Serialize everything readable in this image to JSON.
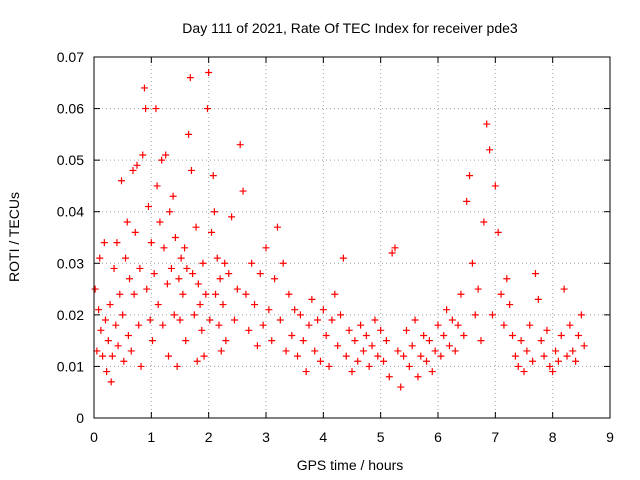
{
  "chart_data": {
    "type": "scatter",
    "title": "Day 111 of 2021, Rate Of TEC Index for receiver pde3",
    "xlabel": "GPS time / hours",
    "ylabel": "ROTI / TECUs",
    "xlim": [
      0,
      9
    ],
    "ylim": [
      0,
      0.07
    ],
    "xticks": [
      "0",
      "1",
      "2",
      "3",
      "4",
      "5",
      "6",
      "7",
      "8",
      "9"
    ],
    "yticks": [
      "0",
      "0.01",
      "0.02",
      "0.03",
      "0.04",
      "0.05",
      "0.06",
      "0.07"
    ],
    "grid": true,
    "marker": "plus",
    "color": "#ff0000",
    "series": [
      {
        "points": [
          [
            0.02,
            0.025
          ],
          [
            0.05,
            0.013
          ],
          [
            0.08,
            0.021
          ],
          [
            0.1,
            0.031
          ],
          [
            0.12,
            0.017
          ],
          [
            0.15,
            0.012
          ],
          [
            0.18,
            0.034
          ],
          [
            0.2,
            0.019
          ],
          [
            0.22,
            0.009
          ],
          [
            0.25,
            0.015
          ],
          [
            0.28,
            0.022
          ],
          [
            0.3,
            0.007
          ],
          [
            0.32,
            0.012
          ],
          [
            0.35,
            0.029
          ],
          [
            0.38,
            0.018
          ],
          [
            0.4,
            0.034
          ],
          [
            0.42,
            0.014
          ],
          [
            0.45,
            0.024
          ],
          [
            0.48,
            0.046
          ],
          [
            0.5,
            0.02
          ],
          [
            0.52,
            0.011
          ],
          [
            0.55,
            0.031
          ],
          [
            0.58,
            0.038
          ],
          [
            0.6,
            0.016
          ],
          [
            0.62,
            0.027
          ],
          [
            0.65,
            0.013
          ],
          [
            0.68,
            0.048
          ],
          [
            0.7,
            0.024
          ],
          [
            0.72,
            0.036
          ],
          [
            0.75,
            0.049
          ],
          [
            0.78,
            0.018
          ],
          [
            0.8,
            0.029
          ],
          [
            0.82,
            0.01
          ],
          [
            0.85,
            0.051
          ],
          [
            0.88,
            0.064
          ],
          [
            0.9,
            0.06
          ],
          [
            0.92,
            0.025
          ],
          [
            0.95,
            0.041
          ],
          [
            0.98,
            0.019
          ],
          [
            1.0,
            0.034
          ],
          [
            1.02,
            0.015
          ],
          [
            1.05,
            0.028
          ],
          [
            1.08,
            0.06
          ],
          [
            1.1,
            0.045
          ],
          [
            1.12,
            0.022
          ],
          [
            1.15,
            0.038
          ],
          [
            1.18,
            0.05
          ],
          [
            1.2,
            0.018
          ],
          [
            1.22,
            0.033
          ],
          [
            1.25,
            0.051
          ],
          [
            1.28,
            0.026
          ],
          [
            1.3,
            0.012
          ],
          [
            1.32,
            0.04
          ],
          [
            1.35,
            0.029
          ],
          [
            1.38,
            0.043
          ],
          [
            1.4,
            0.02
          ],
          [
            1.42,
            0.035
          ],
          [
            1.45,
            0.01
          ],
          [
            1.48,
            0.027
          ],
          [
            1.5,
            0.019
          ],
          [
            1.52,
            0.031
          ],
          [
            1.55,
            0.024
          ],
          [
            1.58,
            0.033
          ],
          [
            1.6,
            0.015
          ],
          [
            1.62,
            0.029
          ],
          [
            1.65,
            0.055
          ],
          [
            1.68,
            0.066
          ],
          [
            1.7,
            0.048
          ],
          [
            1.72,
            0.028
          ],
          [
            1.75,
            0.02
          ],
          [
            1.78,
            0.037
          ],
          [
            1.8,
            0.011
          ],
          [
            1.82,
            0.026
          ],
          [
            1.85,
            0.022
          ],
          [
            1.88,
            0.017
          ],
          [
            1.9,
            0.03
          ],
          [
            1.92,
            0.012
          ],
          [
            1.95,
            0.024
          ],
          [
            1.98,
            0.06
          ],
          [
            2.0,
            0.067
          ],
          [
            2.02,
            0.019
          ],
          [
            2.05,
            0.036
          ],
          [
            2.08,
            0.047
          ],
          [
            2.1,
            0.04
          ],
          [
            2.12,
            0.024
          ],
          [
            2.15,
            0.031
          ],
          [
            2.18,
            0.018
          ],
          [
            2.2,
            0.027
          ],
          [
            2.22,
            0.013
          ],
          [
            2.25,
            0.022
          ],
          [
            2.28,
            0.03
          ],
          [
            2.3,
            0.015
          ],
          [
            2.35,
            0.028
          ],
          [
            2.4,
            0.039
          ],
          [
            2.45,
            0.019
          ],
          [
            2.5,
            0.025
          ],
          [
            2.55,
            0.053
          ],
          [
            2.6,
            0.044
          ],
          [
            2.65,
            0.024
          ],
          [
            2.7,
            0.017
          ],
          [
            2.75,
            0.03
          ],
          [
            2.8,
            0.022
          ],
          [
            2.85,
            0.014
          ],
          [
            2.9,
            0.028
          ],
          [
            2.95,
            0.018
          ],
          [
            3.0,
            0.033
          ],
          [
            3.05,
            0.021
          ],
          [
            3.1,
            0.015
          ],
          [
            3.15,
            0.027
          ],
          [
            3.2,
            0.037
          ],
          [
            3.25,
            0.019
          ],
          [
            3.3,
            0.03
          ],
          [
            3.35,
            0.013
          ],
          [
            3.4,
            0.024
          ],
          [
            3.45,
            0.016
          ],
          [
            3.5,
            0.021
          ],
          [
            3.55,
            0.012
          ],
          [
            3.6,
            0.02
          ],
          [
            3.65,
            0.015
          ],
          [
            3.7,
            0.009
          ],
          [
            3.75,
            0.018
          ],
          [
            3.8,
            0.023
          ],
          [
            3.85,
            0.013
          ],
          [
            3.9,
            0.019
          ],
          [
            3.95,
            0.011
          ],
          [
            4.0,
            0.021
          ],
          [
            4.05,
            0.016
          ],
          [
            4.1,
            0.01
          ],
          [
            4.15,
            0.019
          ],
          [
            4.2,
            0.024
          ],
          [
            4.25,
            0.014
          ],
          [
            4.3,
            0.02
          ],
          [
            4.35,
            0.031
          ],
          [
            4.4,
            0.012
          ],
          [
            4.45,
            0.017
          ],
          [
            4.5,
            0.009
          ],
          [
            4.55,
            0.015
          ],
          [
            4.6,
            0.011
          ],
          [
            4.65,
            0.018
          ],
          [
            4.7,
            0.013
          ],
          [
            4.75,
            0.016
          ],
          [
            4.8,
            0.01
          ],
          [
            4.85,
            0.014
          ],
          [
            4.9,
            0.019
          ],
          [
            4.95,
            0.012
          ],
          [
            5.0,
            0.017
          ],
          [
            5.05,
            0.011
          ],
          [
            5.1,
            0.015
          ],
          [
            5.15,
            0.008
          ],
          [
            5.2,
            0.032
          ],
          [
            5.25,
            0.033
          ],
          [
            5.3,
            0.013
          ],
          [
            5.35,
            0.006
          ],
          [
            5.4,
            0.012
          ],
          [
            5.45,
            0.017
          ],
          [
            5.5,
            0.01
          ],
          [
            5.55,
            0.014
          ],
          [
            5.6,
            0.019
          ],
          [
            5.65,
            0.008
          ],
          [
            5.7,
            0.012
          ],
          [
            5.75,
            0.016
          ],
          [
            5.8,
            0.011
          ],
          [
            5.85,
            0.015
          ],
          [
            5.9,
            0.009
          ],
          [
            5.95,
            0.013
          ],
          [
            6.0,
            0.018
          ],
          [
            6.05,
            0.012
          ],
          [
            6.1,
            0.016
          ],
          [
            6.15,
            0.021
          ],
          [
            6.2,
            0.014
          ],
          [
            6.25,
            0.019
          ],
          [
            6.3,
            0.013
          ],
          [
            6.35,
            0.018
          ],
          [
            6.4,
            0.024
          ],
          [
            6.45,
            0.016
          ],
          [
            6.5,
            0.042
          ],
          [
            6.55,
            0.047
          ],
          [
            6.6,
            0.03
          ],
          [
            6.65,
            0.02
          ],
          [
            6.7,
            0.025
          ],
          [
            6.75,
            0.015
          ],
          [
            6.8,
            0.038
          ],
          [
            6.85,
            0.057
          ],
          [
            6.9,
            0.052
          ],
          [
            6.95,
            0.02
          ],
          [
            7.0,
            0.045
          ],
          [
            7.05,
            0.036
          ],
          [
            7.1,
            0.024
          ],
          [
            7.15,
            0.018
          ],
          [
            7.2,
            0.027
          ],
          [
            7.25,
            0.022
          ],
          [
            7.3,
            0.016
          ],
          [
            7.35,
            0.012
          ],
          [
            7.4,
            0.01
          ],
          [
            7.45,
            0.015
          ],
          [
            7.5,
            0.009
          ],
          [
            7.55,
            0.013
          ],
          [
            7.6,
            0.018
          ],
          [
            7.65,
            0.011
          ],
          [
            7.7,
            0.028
          ],
          [
            7.75,
            0.023
          ],
          [
            7.8,
            0.015
          ],
          [
            7.85,
            0.012
          ],
          [
            7.9,
            0.017
          ],
          [
            7.95,
            0.01
          ],
          [
            8.0,
            0.009
          ],
          [
            8.05,
            0.013
          ],
          [
            8.1,
            0.011
          ],
          [
            8.15,
            0.016
          ],
          [
            8.2,
            0.025
          ],
          [
            8.25,
            0.012
          ],
          [
            8.3,
            0.018
          ],
          [
            8.35,
            0.013
          ],
          [
            8.4,
            0.011
          ],
          [
            8.45,
            0.016
          ],
          [
            8.5,
            0.02
          ],
          [
            8.55,
            0.014
          ]
        ]
      }
    ]
  }
}
